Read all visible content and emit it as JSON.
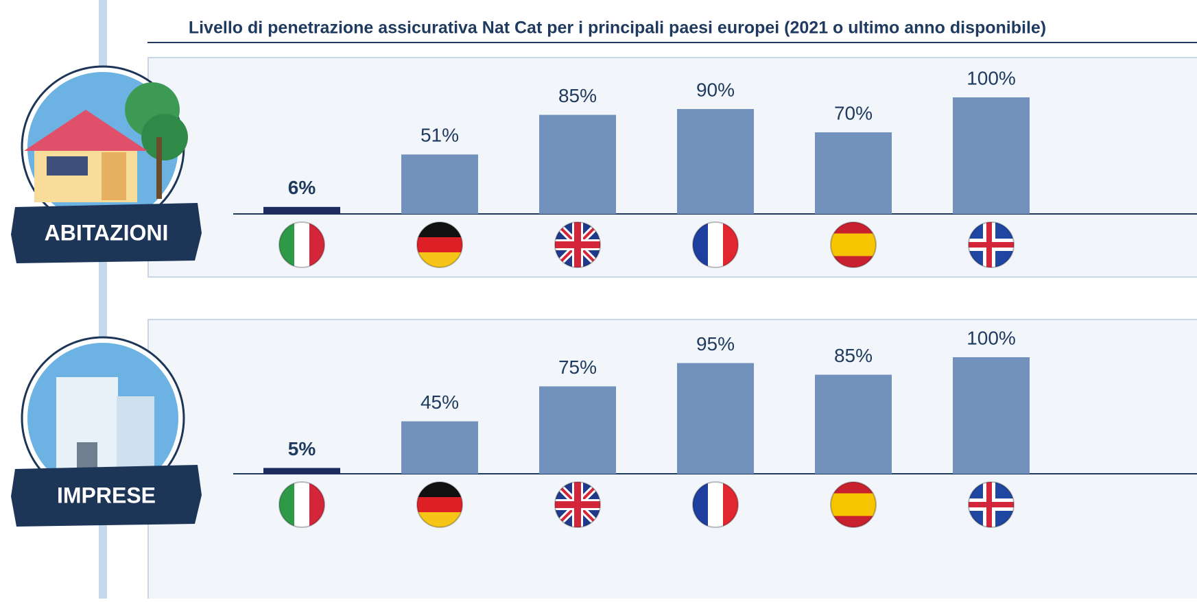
{
  "title": "Livello di penetrazione assicurativa Nat Cat per i principali paesi europei (2021 o ultimo anno disponibile)",
  "chart_data": [
    {
      "type": "bar",
      "label": "ABITAZIONI",
      "categories": [
        null,
        null,
        null,
        null,
        null,
        null
      ],
      "values": [
        6,
        51,
        85,
        90,
        70,
        100
      ],
      "value_labels": [
        "6%",
        "51%",
        "85%",
        "90%",
        "70%",
        "100%"
      ],
      "colors": [
        "#1e2b5e",
        "#7391bd",
        "#7391bd",
        "#7391bd",
        "#7391bd",
        "#7391bd"
      ],
      "ylim": [
        0,
        100
      ]
    },
    {
      "type": "bar",
      "label": "IMPRESE",
      "categories": [
        null,
        null,
        null,
        null,
        null,
        null
      ],
      "values": [
        5,
        45,
        75,
        95,
        85,
        100
      ],
      "value_labels": [
        "5%",
        "45%",
        "75%",
        "95%",
        "85%",
        "100%"
      ],
      "colors": [
        "#1e2b5e",
        "#7391bd",
        "#7391bd",
        "#7391bd",
        "#7391bd",
        "#7391bd"
      ],
      "ylim": [
        0,
        100
      ]
    }
  ]
}
